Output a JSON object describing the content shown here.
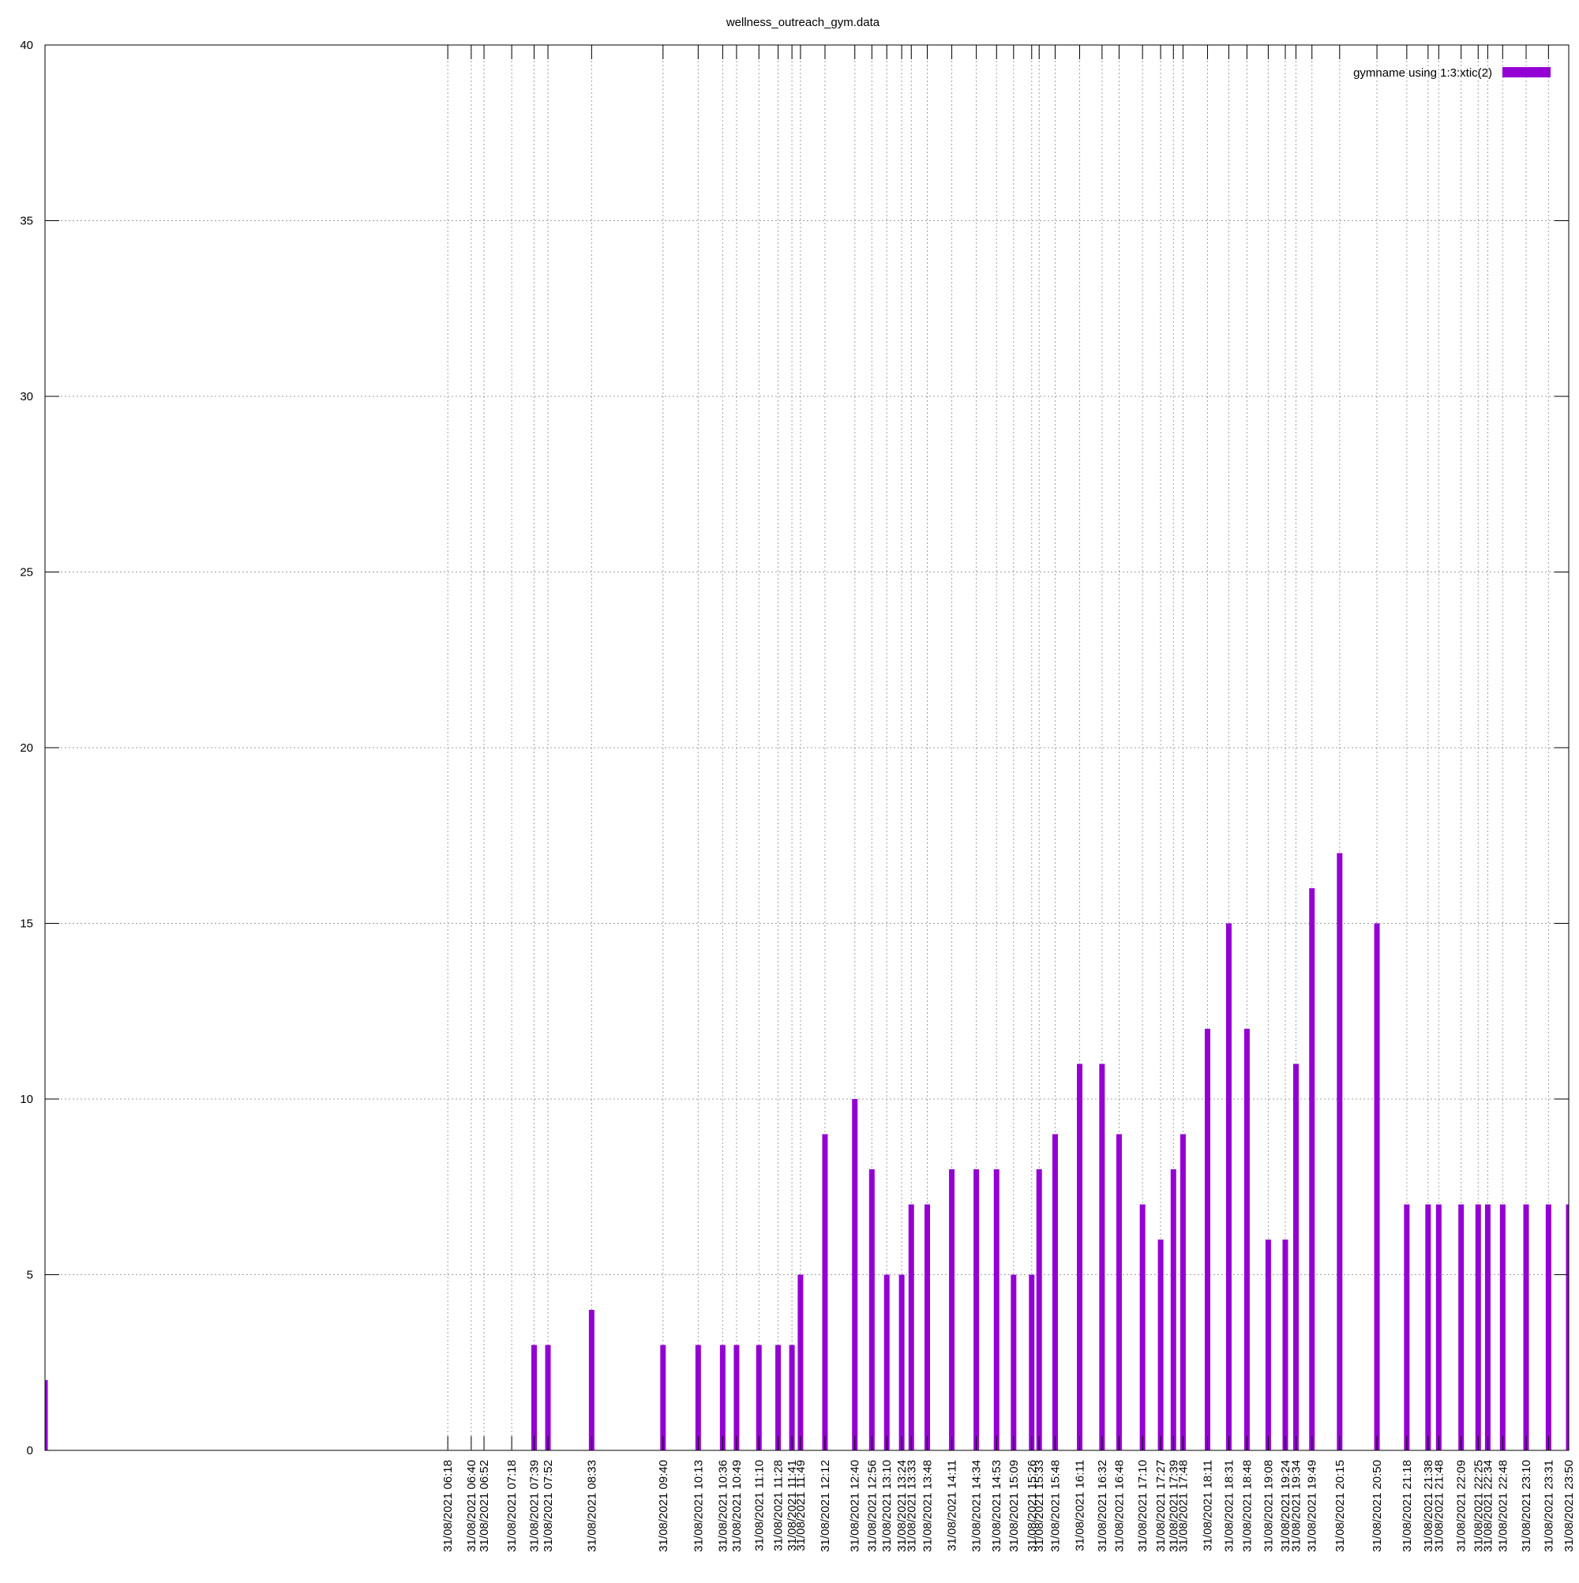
{
  "chart_data": {
    "type": "bar",
    "title": "wellness_outreach_gym.data",
    "legend": {
      "label": "gymname using 1:3:xtic(2)",
      "placement": "top-right"
    },
    "ylim": [
      0,
      40
    ],
    "yticks": [
      0,
      5,
      10,
      15,
      20,
      25,
      30,
      35,
      40
    ],
    "grid": true,
    "bar_color": "#9400d3",
    "series": [
      {
        "points": [
          {
            "x": 0,
            "label": "",
            "y": 2
          },
          {
            "x": 378,
            "label": "31/08/2021 06:18",
            "y": 0
          },
          {
            "x": 400,
            "label": "31/08/2021 06:40",
            "y": 0
          },
          {
            "x": 412,
            "label": "31/08/2021 06:52",
            "y": 0
          },
          {
            "x": 438,
            "label": "31/08/2021 07:18",
            "y": 0
          },
          {
            "x": 459,
            "label": "31/08/2021 07:39",
            "y": 3
          },
          {
            "x": 472,
            "label": "31/08/2021 07:52",
            "y": 3
          },
          {
            "x": 513,
            "label": "31/08/2021 08:33",
            "y": 4
          },
          {
            "x": 580,
            "label": "31/08/2021 09:40",
            "y": 3
          },
          {
            "x": 613,
            "label": "31/08/2021 10:13",
            "y": 3
          },
          {
            "x": 636,
            "label": "31/08/2021 10:36",
            "y": 3
          },
          {
            "x": 649,
            "label": "31/08/2021 10:49",
            "y": 3
          },
          {
            "x": 670,
            "label": "31/08/2021 11:10",
            "y": 3
          },
          {
            "x": 688,
            "label": "31/08/2021 11:28",
            "y": 3
          },
          {
            "x": 701,
            "label": "31/08/2021 11:41",
            "y": 3
          },
          {
            "x": 709,
            "label": "31/08/2021 11:49",
            "y": 5
          },
          {
            "x": 732,
            "label": "31/08/2021 12:12",
            "y": 9
          },
          {
            "x": 760,
            "label": "31/08/2021 12:40",
            "y": 10
          },
          {
            "x": 776,
            "label": "31/08/2021 12:56",
            "y": 8
          },
          {
            "x": 790,
            "label": "31/08/2021 13:10",
            "y": 5
          },
          {
            "x": 804,
            "label": "31/08/2021 13:24",
            "y": 5
          },
          {
            "x": 813,
            "label": "31/08/2021 13:33",
            "y": 7
          },
          {
            "x": 828,
            "label": "31/08/2021 13:48",
            "y": 7
          },
          {
            "x": 851,
            "label": "31/08/2021 14:11",
            "y": 8
          },
          {
            "x": 874,
            "label": "31/08/2021 14:34",
            "y": 8
          },
          {
            "x": 893,
            "label": "31/08/2021 14:53",
            "y": 8
          },
          {
            "x": 909,
            "label": "31/08/2021 15:09",
            "y": 5
          },
          {
            "x": 926,
            "label": "31/08/2021 15:26",
            "y": 5
          },
          {
            "x": 933,
            "label": "31/08/2021 15:33",
            "y": 8
          },
          {
            "x": 948,
            "label": "31/08/2021 15:48",
            "y": 9
          },
          {
            "x": 971,
            "label": "31/08/2021 16:11",
            "y": 11
          },
          {
            "x": 992,
            "label": "31/08/2021 16:32",
            "y": 11
          },
          {
            "x": 1008,
            "label": "31/08/2021 16:48",
            "y": 9
          },
          {
            "x": 1030,
            "label": "31/08/2021 17:10",
            "y": 7
          },
          {
            "x": 1047,
            "label": "31/08/2021 17:27",
            "y": 6
          },
          {
            "x": 1059,
            "label": "31/08/2021 17:39",
            "y": 8
          },
          {
            "x": 1068,
            "label": "31/08/2021 17:48",
            "y": 9
          },
          {
            "x": 1091,
            "label": "31/08/2021 18:11",
            "y": 12
          },
          {
            "x": 1111,
            "label": "31/08/2021 18:31",
            "y": 15
          },
          {
            "x": 1128,
            "label": "31/08/2021 18:48",
            "y": 12
          },
          {
            "x": 1148,
            "label": "31/08/2021 19:08",
            "y": 6
          },
          {
            "x": 1164,
            "label": "31/08/2021 19:24",
            "y": 6
          },
          {
            "x": 1174,
            "label": "31/08/2021 19:34",
            "y": 11
          },
          {
            "x": 1189,
            "label": "31/08/2021 19:49",
            "y": 16
          },
          {
            "x": 1215,
            "label": "31/08/2021 20:15",
            "y": 17
          },
          {
            "x": 1250,
            "label": "31/08/2021 20:50",
            "y": 15
          },
          {
            "x": 1278,
            "label": "31/08/2021 21:18",
            "y": 7
          },
          {
            "x": 1298,
            "label": "31/08/2021 21:38",
            "y": 7
          },
          {
            "x": 1308,
            "label": "31/08/2021 21:48",
            "y": 7
          },
          {
            "x": 1329,
            "label": "31/08/2021 22:09",
            "y": 7
          },
          {
            "x": 1345,
            "label": "31/08/2021 22:25",
            "y": 7
          },
          {
            "x": 1354,
            "label": "31/08/2021 22:34",
            "y": 7
          },
          {
            "x": 1368,
            "label": "31/08/2021 22:48",
            "y": 7
          },
          {
            "x": 1390,
            "label": "31/08/2021 23:10",
            "y": 7
          },
          {
            "x": 1411,
            "label": "31/08/2021 23:31",
            "y": 7
          },
          {
            "x": 1430,
            "label": "31/08/2021 23:50",
            "y": 7
          }
        ]
      }
    ]
  }
}
